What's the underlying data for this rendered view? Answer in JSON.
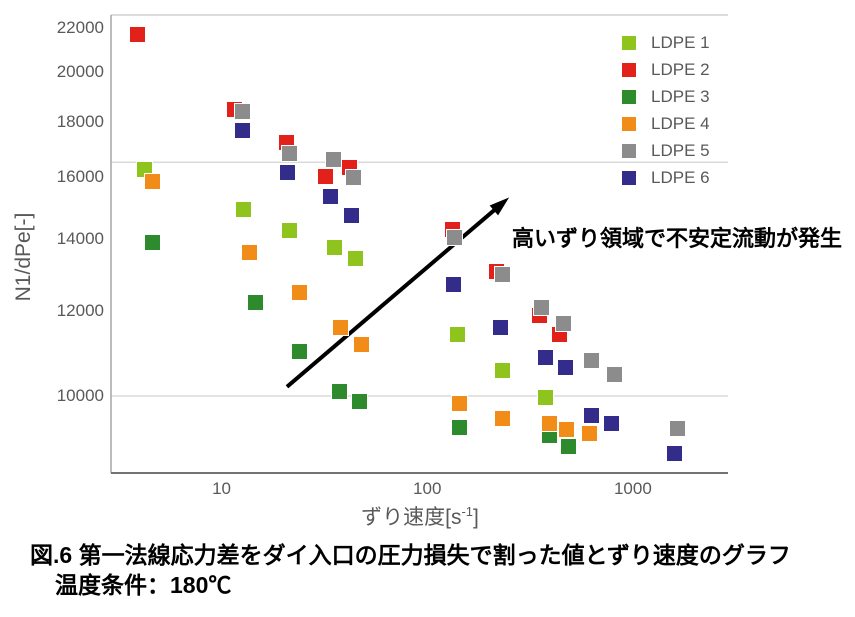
{
  "chart_data": {
    "type": "scatter",
    "title": "",
    "xlabel_base": "ずり速度[s",
    "xlabel_sup": "-1",
    "xlabel_close": "]",
    "ylabel": "N1/dPe[-]",
    "xscale": "log",
    "yscale": "log",
    "xlim": [
      2.9,
      2900
    ],
    "ylim": [
      8480,
      22620
    ],
    "x_ticks": [
      10,
      100,
      1000
    ],
    "y_ticks": [
      22000,
      20000,
      18000,
      16000,
      14000,
      12000,
      10000
    ],
    "y_gridlines": [
      16500,
      10000
    ],
    "grid": "partial-horizontal",
    "legend_position": "top-right",
    "series": [
      {
        "name": "LDPE 1",
        "color": "#8FC31E",
        "points": [
          [
            4.2,
            16260
          ],
          [
            12.8,
            14900
          ],
          [
            21.4,
            14270
          ],
          [
            35.5,
            13760
          ],
          [
            45,
            13440
          ],
          [
            140,
            11420
          ],
          [
            233,
            10570
          ],
          [
            374,
            9960
          ]
        ]
      },
      {
        "name": "LDPE 2",
        "color": "#E2211B",
        "points": [
          [
            3.9,
            21700
          ],
          [
            11.6,
            18460
          ],
          [
            20.6,
            17200
          ],
          [
            32,
            16020
          ],
          [
            42,
            16330
          ],
          [
            132,
            14300
          ],
          [
            216,
            13070
          ],
          [
            350,
            11880
          ],
          [
            440,
            11420
          ]
        ]
      },
      {
        "name": "LDPE 3",
        "color": "#2E8B2D",
        "points": [
          [
            4.6,
            13880
          ],
          [
            14.6,
            12210
          ],
          [
            24,
            11010
          ],
          [
            37.5,
            10090
          ],
          [
            47,
            9890
          ],
          [
            144,
            9340
          ],
          [
            395,
            9180
          ],
          [
            486,
            8970
          ]
        ]
      },
      {
        "name": "LDPE 4",
        "color": "#F08C17",
        "points": [
          [
            4.6,
            15820
          ],
          [
            13.6,
            13590
          ],
          [
            24,
            12470
          ],
          [
            38,
            11570
          ],
          [
            48,
            11160
          ],
          [
            144,
            9850
          ],
          [
            232,
            9540
          ],
          [
            395,
            9420
          ],
          [
            475,
            9300
          ],
          [
            616,
            9220
          ]
        ]
      },
      {
        "name": "LDPE 5",
        "color": "#8C8C8C",
        "points": [
          [
            12.7,
            18400
          ],
          [
            21.3,
            16830
          ],
          [
            35,
            16590
          ],
          [
            44,
            15960
          ],
          [
            136,
            14030
          ],
          [
            231,
            12960
          ],
          [
            361,
            12080
          ],
          [
            460,
            11690
          ],
          [
            630,
            10800
          ],
          [
            817,
            10480
          ],
          [
            1650,
            9320
          ]
        ]
      },
      {
        "name": "LDPE 6",
        "color": "#332C8B",
        "points": [
          [
            12.6,
            17650
          ],
          [
            21,
            16130
          ],
          [
            34,
            15320
          ],
          [
            43,
            14710
          ],
          [
            134,
            12710
          ],
          [
            226,
            11570
          ],
          [
            377,
            10850
          ],
          [
            471,
            10640
          ],
          [
            630,
            9600
          ],
          [
            790,
            9420
          ],
          [
            1600,
            8850
          ]
        ]
      }
    ],
    "annotation_arrow": {
      "from": [
        20.8,
        10200
      ],
      "to": [
        250,
        15300
      ]
    }
  },
  "annotation": {
    "text": "高いずり領域で不安定流動が発生"
  },
  "caption": {
    "line1": "図.6 第一法線応力差をダイ入口の圧力損失で割った値とずり速度のグラフ",
    "line2": "温度条件：180℃"
  },
  "colors": {
    "tick_text": "#595959",
    "axis_line": "#A6A6A6",
    "axis_bottom": "#737373",
    "gridline": "#D2D2D2",
    "top_border": "#C8C8C8",
    "arrow": "#000000"
  }
}
